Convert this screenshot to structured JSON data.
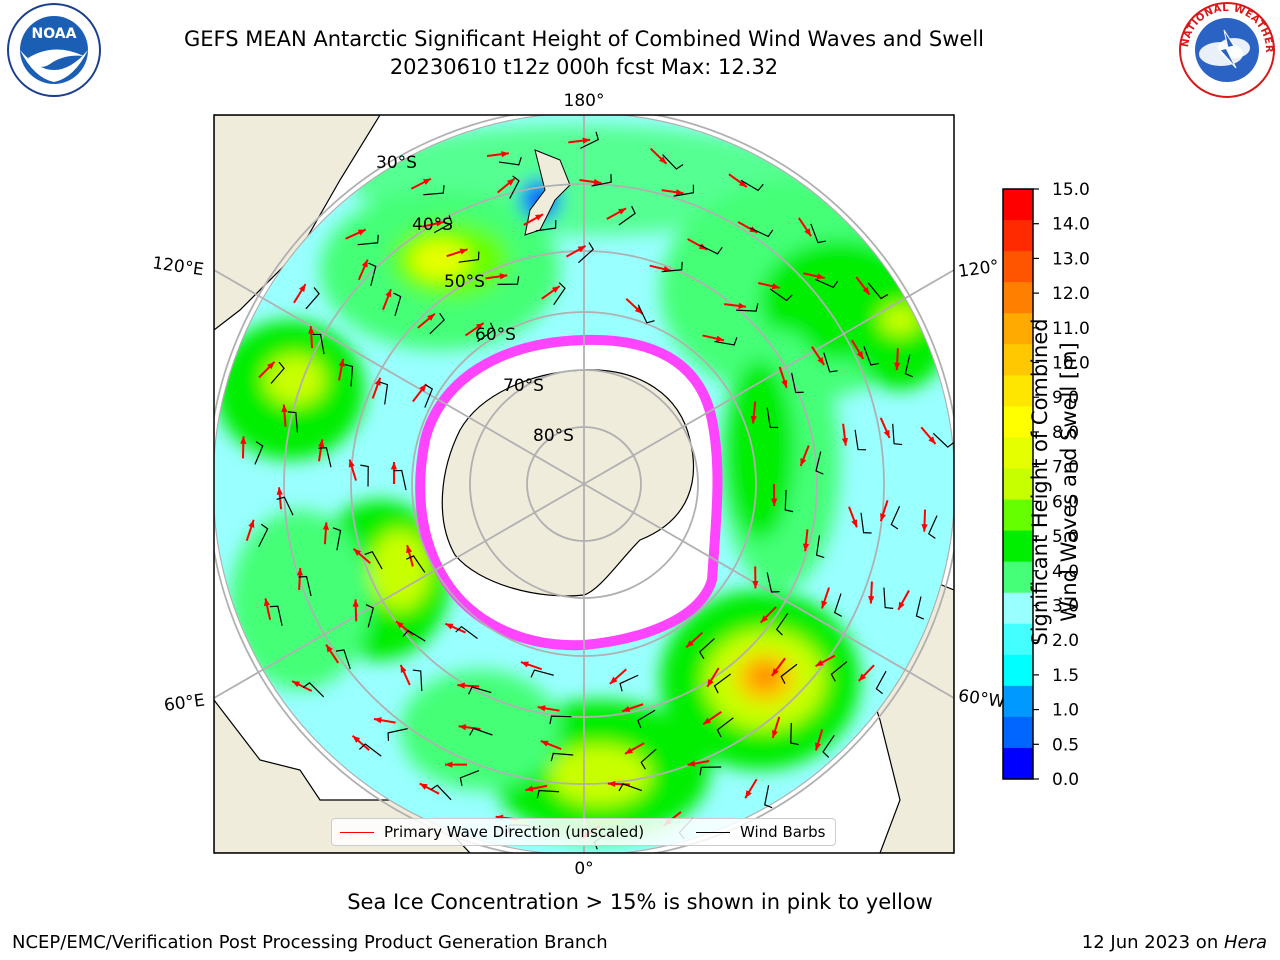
{
  "header": {
    "title": "GEFS MEAN Antarctic Significant Height of Combined Wind Waves and Swell",
    "subtitle": "20230610 t12z 000h fcst   Max: 12.32"
  },
  "logos": {
    "noaa": "NOAA",
    "nws": "NATIONAL WEATHER SERVICE"
  },
  "map": {
    "projection": "south-polar-stereographic",
    "longitude_labels": [
      "180°",
      "120°E",
      "120°",
      "60°E",
      "60°W",
      "0°"
    ],
    "latitude_labels": [
      "30°S",
      "40°S",
      "50°S",
      "60°S",
      "70°S",
      "80°S"
    ],
    "colors": {
      "land": "#efecdc",
      "ice_region": "#ffffff",
      "sea_ice_edge": "#ff44ff",
      "wave_arrow": "#ff0000",
      "wind_barb": "#000000",
      "grid": "#b0b0b0"
    }
  },
  "legend": {
    "wave_label": "Primary Wave Direction (unscaled)",
    "wind_label": "Wind Barbs"
  },
  "colorbar": {
    "title_line1": "Significant Height of Combined",
    "title_line2": "Wind Waves and Swell [m]",
    "ticks": [
      "15.0",
      "14.0",
      "13.0",
      "12.0",
      "11.0",
      "10.0",
      "9.0",
      "8.0",
      "7.0",
      "6.0",
      "5.0",
      "4.0",
      "3.0",
      "2.0",
      "1.5",
      "1.0",
      "0.5",
      "0.0"
    ],
    "colors_top_to_bottom": [
      "#ff0000",
      "#ff2a00",
      "#ff5400",
      "#ff8000",
      "#ffaa00",
      "#ffc800",
      "#ffe600",
      "#ffff00",
      "#e6ff00",
      "#c8ff00",
      "#66ff00",
      "#00ee00",
      "#44ff77",
      "#99ffff",
      "#44ffff",
      "#00ffff",
      "#0099ff",
      "#0066ff",
      "#0000ff"
    ]
  },
  "footer": {
    "ice_note": "Sea Ice Concentration > 15% is shown in pink to yellow",
    "left": "NCEP/EMC/Verification Post Processing Product Generation Branch",
    "right_prefix": "12 Jun 2023 on ",
    "right_machine": "Hera"
  }
}
